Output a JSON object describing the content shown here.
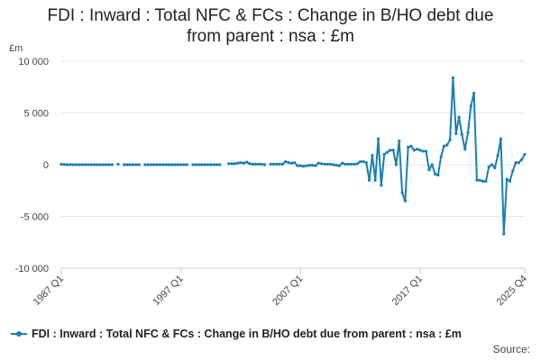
{
  "title_line1": "FDI : Inward : Total NFC & FCs : Change in B/HO debt due",
  "title_line2": "from parent : nsa : £m",
  "unit_label": "£m",
  "legend_label": "FDI : Inward : Total NFC & FCs : Change in B/HO debt due from parent : nsa : £m",
  "source_label": "Source:",
  "colors": {
    "series": "#1a7fb1",
    "grid": "#e6e6e6",
    "axis": "#cccccc",
    "text": "#444444"
  },
  "chart_data": {
    "type": "line",
    "title": "FDI : Inward : Total NFC & FCs : Change in B/HO debt due from parent : nsa : £m",
    "ylabel": "£m",
    "ylim": [
      -10000,
      10000
    ],
    "yticks": [
      10000,
      5000,
      0,
      -5000,
      -10000
    ],
    "ytick_labels": [
      "10 000",
      "5 000",
      "0",
      "-5 000",
      "-10 000"
    ],
    "x_start": "1987 Q1",
    "x_end": "2025 Q4",
    "xticks": [
      "1987 Q1",
      "1997 Q1",
      "2007 Q1",
      "2017 Q1",
      "2025 Q4"
    ],
    "grid": true,
    "legend_position": "bottom",
    "series": [
      {
        "name": "FDI : Inward : Total NFC & FCs : Change in B/HO debt due from parent : nsa : £m",
        "color": "#1a7fb1",
        "points": [
          [
            "1987 Q1",
            50
          ],
          [
            "1987 Q2",
            20
          ],
          [
            "1987 Q3",
            0
          ],
          [
            "1987 Q4",
            10
          ],
          [
            "1988 Q1",
            0
          ],
          [
            "1988 Q2",
            0
          ],
          [
            "1988 Q3",
            0
          ],
          [
            "1988 Q4",
            0
          ],
          [
            "1989 Q1",
            0
          ],
          [
            "1989 Q2",
            0
          ],
          [
            "1989 Q3",
            0
          ],
          [
            "1989 Q4",
            0
          ],
          [
            "1990 Q1",
            0
          ],
          [
            "1990 Q2",
            0
          ],
          [
            "1990 Q3",
            0
          ],
          [
            "1990 Q4",
            0
          ],
          [
            "1991 Q1",
            0
          ],
          [
            "1991 Q2",
            0
          ],
          [
            "1991 Q3",
            null
          ],
          [
            "1991 Q4",
            50
          ],
          [
            "1992 Q1",
            null
          ],
          [
            "1992 Q2",
            0
          ],
          [
            "1992 Q3",
            0
          ],
          [
            "1992 Q4",
            0
          ],
          [
            "1993 Q1",
            0
          ],
          [
            "1993 Q2",
            0
          ],
          [
            "1993 Q3",
            0
          ],
          [
            "1993 Q4",
            null
          ],
          [
            "1994 Q1",
            0
          ],
          [
            "1994 Q2",
            0
          ],
          [
            "1994 Q3",
            0
          ],
          [
            "1994 Q4",
            0
          ],
          [
            "1995 Q1",
            0
          ],
          [
            "1995 Q2",
            0
          ],
          [
            "1995 Q3",
            0
          ],
          [
            "1995 Q4",
            0
          ],
          [
            "1996 Q1",
            0
          ],
          [
            "1996 Q2",
            0
          ],
          [
            "1996 Q3",
            0
          ],
          [
            "1996 Q4",
            0
          ],
          [
            "1997 Q1",
            0
          ],
          [
            "1997 Q2",
            0
          ],
          [
            "1997 Q3",
            0
          ],
          [
            "1997 Q4",
            null
          ],
          [
            "1998 Q1",
            0
          ],
          [
            "1998 Q2",
            0
          ],
          [
            "1998 Q3",
            0
          ],
          [
            "1998 Q4",
            0
          ],
          [
            "1999 Q1",
            0
          ],
          [
            "1999 Q2",
            0
          ],
          [
            "1999 Q3",
            0
          ],
          [
            "1999 Q4",
            0
          ],
          [
            "2000 Q1",
            0
          ],
          [
            "2000 Q2",
            0
          ],
          [
            "2000 Q3",
            null
          ],
          [
            "2000 Q4",
            null
          ],
          [
            "2001 Q1",
            100
          ],
          [
            "2001 Q2",
            100
          ],
          [
            "2001 Q3",
            100
          ],
          [
            "2001 Q4",
            150
          ],
          [
            "2002 Q1",
            200
          ],
          [
            "2002 Q2",
            150
          ],
          [
            "2002 Q3",
            250
          ],
          [
            "2002 Q4",
            100
          ],
          [
            "2003 Q1",
            50
          ],
          [
            "2003 Q2",
            50
          ],
          [
            "2003 Q3",
            50
          ],
          [
            "2003 Q4",
            50
          ],
          [
            "2004 Q1",
            0
          ],
          [
            "2004 Q2",
            null
          ],
          [
            "2004 Q3",
            50
          ],
          [
            "2004 Q4",
            50
          ],
          [
            "2005 Q1",
            50
          ],
          [
            "2005 Q2",
            50
          ],
          [
            "2005 Q3",
            50
          ],
          [
            "2005 Q4",
            300
          ],
          [
            "2006 Q1",
            200
          ],
          [
            "2006 Q2",
            150
          ],
          [
            "2006 Q3",
            200
          ],
          [
            "2006 Q4",
            -100
          ],
          [
            "2007 Q1",
            -100
          ],
          [
            "2007 Q2",
            -150
          ],
          [
            "2007 Q3",
            -100
          ],
          [
            "2007 Q4",
            -50
          ],
          [
            "2008 Q1",
            -50
          ],
          [
            "2008 Q2",
            -100
          ],
          [
            "2008 Q3",
            150
          ],
          [
            "2008 Q4",
            100
          ],
          [
            "2009 Q1",
            50
          ],
          [
            "2009 Q2",
            50
          ],
          [
            "2009 Q3",
            50
          ],
          [
            "2009 Q4",
            0
          ],
          [
            "2010 Q1",
            -50
          ],
          [
            "2010 Q2",
            -100
          ],
          [
            "2010 Q3",
            150
          ],
          [
            "2010 Q4",
            50
          ],
          [
            "2011 Q1",
            50
          ],
          [
            "2011 Q2",
            50
          ],
          [
            "2011 Q3",
            50
          ],
          [
            "2011 Q4",
            100
          ],
          [
            "2012 Q1",
            300
          ],
          [
            "2012 Q2",
            300
          ],
          [
            "2012 Q3",
            200
          ],
          [
            "2012 Q4",
            -1500
          ],
          [
            "2013 Q1",
            900
          ],
          [
            "2013 Q2",
            -1500
          ],
          [
            "2013 Q3",
            2500
          ],
          [
            "2013 Q4",
            -2000
          ],
          [
            "2014 Q1",
            1000
          ],
          [
            "2014 Q2",
            1200
          ],
          [
            "2014 Q3",
            1400
          ],
          [
            "2014 Q4",
            1400
          ],
          [
            "2015 Q1",
            0
          ],
          [
            "2015 Q2",
            2300
          ],
          [
            "2015 Q3",
            -2700
          ],
          [
            "2015 Q4",
            -3500
          ],
          [
            "2016 Q1",
            1700
          ],
          [
            "2016 Q2",
            1800
          ],
          [
            "2016 Q3",
            1400
          ],
          [
            "2016 Q4",
            1500
          ],
          [
            "2017 Q1",
            1400
          ],
          [
            "2017 Q2",
            1300
          ],
          [
            "2017 Q3",
            1300
          ],
          [
            "2017 Q4",
            -500
          ],
          [
            "2018 Q1",
            0
          ],
          [
            "2018 Q2",
            -900
          ],
          [
            "2018 Q3",
            -1000
          ],
          [
            "2018 Q4",
            800
          ],
          [
            "2019 Q1",
            1800
          ],
          [
            "2019 Q2",
            1900
          ],
          [
            "2019 Q3",
            2400
          ],
          [
            "2019 Q4",
            8400
          ],
          [
            "2020 Q1",
            3000
          ],
          [
            "2020 Q2",
            4600
          ],
          [
            "2020 Q3",
            2900
          ],
          [
            "2020 Q4",
            1500
          ],
          [
            "2021 Q1",
            3100
          ],
          [
            "2021 Q2",
            5700
          ],
          [
            "2021 Q3",
            6900
          ],
          [
            "2021 Q4",
            -1500
          ],
          [
            "2022 Q1",
            -1500
          ],
          [
            "2022 Q2",
            -1600
          ],
          [
            "2022 Q3",
            -1600
          ],
          [
            "2022 Q4",
            -200
          ],
          [
            "2023 Q1",
            0
          ],
          [
            "2023 Q2",
            -300
          ],
          [
            "2023 Q3",
            900
          ],
          [
            "2023 Q4",
            2500
          ],
          [
            "2024 Q1",
            -6700
          ],
          [
            "2024 Q2",
            -1400
          ],
          [
            "2024 Q3",
            -1600
          ],
          [
            "2024 Q4",
            -600
          ],
          [
            "2025 Q1",
            200
          ],
          [
            "2025 Q2",
            200
          ],
          [
            "2025 Q3",
            500
          ],
          [
            "2025 Q4",
            1000
          ]
        ]
      }
    ]
  }
}
